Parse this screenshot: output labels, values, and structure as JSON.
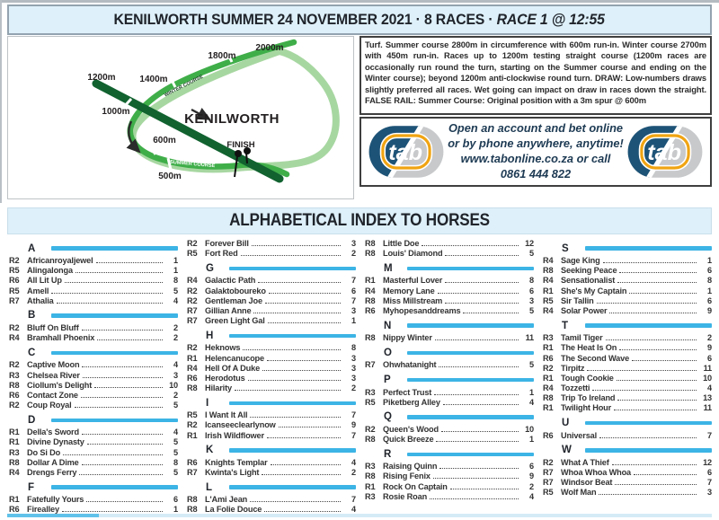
{
  "header": {
    "title_main": "KENILWORTH SUMMER 24 NOVEMBER 2021 · 8 RACES · ",
    "title_race": "RACE 1 @ 12:55"
  },
  "map": {
    "labels": {
      "d2000": "2000m",
      "d1800": "1800m",
      "d1400": "1400m",
      "d1200": "1200m",
      "d1000": "1000m",
      "d600": "600m",
      "d500": "500m",
      "course_name": "KENILWORTH",
      "finish": "FINISH",
      "winter": "WINTER COURSE",
      "summer": "SUMMER COURSE"
    },
    "colors": {
      "light_green": "#a7d7a1",
      "mid_green": "#3fae49",
      "dark_green": "#11622f"
    }
  },
  "info": {
    "text": "Turf. Summer course 2800m in circumference with 600m run-in. Winter course 2700m with 450m run-in. Races up to 1200m testing straight course (1200m races are occasionally run round the turn, starting on the Summer course and ending on the Winter course); beyond 1200m anti-clockwise round turn. DRAW: Low-numbers draws slightly preferred all races. Wet going can impact on draw in races down the straight. FALSE RAIL: Summer Course: Original position with a 3m spur @ 600m"
  },
  "tab": {
    "logo_text": "tab",
    "lines": [
      "Open an account and bet online",
      "or by phone anywhere, anytime!",
      "www.tabonline.co.za or call",
      "0861 444 822"
    ],
    "colors": {
      "blue": "#1d5377",
      "silver": "#c7c9cb",
      "gold": "#f0a412"
    }
  },
  "index": {
    "title": "ALPHABETICAL INDEX TO HORSES",
    "accent_color": "#3cb4e5",
    "columns": [
      {
        "sections": [
          {
            "letter": "A",
            "entries": [
              [
                "R2",
                "Africanroyaljewel",
                "1"
              ],
              [
                "R5",
                "Alingalonga",
                "1"
              ],
              [
                "R6",
                "All Lit Up",
                "8"
              ],
              [
                "R5",
                "Amell",
                "5"
              ],
              [
                "R7",
                "Athalia",
                "4"
              ]
            ]
          },
          {
            "letter": "B",
            "entries": [
              [
                "R2",
                "Bluff On Bluff",
                "2"
              ],
              [
                "R4",
                "Bramhall Phoenix",
                "2"
              ]
            ]
          },
          {
            "letter": "C",
            "entries": [
              [
                "R2",
                "Captive Moon",
                "4"
              ],
              [
                "R3",
                "Chelsea River",
                "3"
              ],
              [
                "R8",
                "Ciollum's Delight",
                "10"
              ],
              [
                "R6",
                "Contact Zone",
                "2"
              ],
              [
                "R2",
                "Coup Royal",
                "5"
              ]
            ]
          },
          {
            "letter": "D",
            "entries": [
              [
                "R1",
                "Della's Sword",
                "4"
              ],
              [
                "R1",
                "Divine Dynasty",
                "5"
              ],
              [
                "R3",
                "Do Si Do",
                "5"
              ],
              [
                "R8",
                "Dollar A Dime",
                "8"
              ],
              [
                "R4",
                "Drengs Ferry",
                "5"
              ]
            ]
          },
          {
            "letter": "F",
            "entries": [
              [
                "R1",
                "Fatefully Yours",
                "6"
              ],
              [
                "R6",
                "Firealley",
                "1"
              ]
            ]
          }
        ]
      },
      {
        "sections": [
          {
            "letter": "",
            "entries": [
              [
                "R2",
                "Forever Bill",
                "3"
              ],
              [
                "R5",
                "Fort Red",
                "2"
              ]
            ]
          },
          {
            "letter": "G",
            "entries": [
              [
                "R4",
                "Galactic Path",
                "7"
              ],
              [
                "R2",
                "Galaktoboureko",
                "6"
              ],
              [
                "R2",
                "Gentleman Joe",
                "7"
              ],
              [
                "R7",
                "Gillian Anne",
                "3"
              ],
              [
                "R7",
                "Green Light Gal",
                "1"
              ]
            ]
          },
          {
            "letter": "H",
            "entries": [
              [
                "R2",
                "Heknows",
                "8"
              ],
              [
                "R1",
                "Helencanucope",
                "3"
              ],
              [
                "R4",
                "Hell Of A Duke",
                "3"
              ],
              [
                "R6",
                "Herodotus",
                "3"
              ],
              [
                "R8",
                "Hilarity",
                "2"
              ]
            ]
          },
          {
            "letter": "I",
            "entries": [
              [
                "R5",
                "I Want It All",
                "7"
              ],
              [
                "R2",
                "Icanseeclearlynow",
                "9"
              ],
              [
                "R1",
                "Irish Wildflower",
                "7"
              ]
            ]
          },
          {
            "letter": "K",
            "entries": [
              [
                "R6",
                "Knights Templar",
                "4"
              ],
              [
                "R7",
                "Kwinta's Light",
                "2"
              ]
            ]
          },
          {
            "letter": "L",
            "entries": [
              [
                "R8",
                "L'Ami Jean",
                "7"
              ],
              [
                "R8",
                "La Folie Douce",
                "4"
              ]
            ]
          }
        ]
      },
      {
        "sections": [
          {
            "letter": "",
            "entries": [
              [
                "R8",
                "Little Doe",
                "12"
              ],
              [
                "R8",
                "Louis' Diamond",
                "5"
              ]
            ]
          },
          {
            "letter": "M",
            "entries": [
              [
                "R1",
                "Masterful Lover",
                "8"
              ],
              [
                "R4",
                "Memory Lane",
                "6"
              ],
              [
                "R8",
                "Miss Millstream",
                "3"
              ],
              [
                "R6",
                "Myhopesanddreams",
                "5"
              ]
            ]
          },
          {
            "letter": "N",
            "entries": [
              [
                "R8",
                "Nippy Winter",
                "11"
              ]
            ]
          },
          {
            "letter": "O",
            "entries": [
              [
                "R7",
                "Ohwhatanight",
                "5"
              ]
            ]
          },
          {
            "letter": "P",
            "entries": [
              [
                "R3",
                "Perfect Trust",
                "1"
              ],
              [
                "R5",
                "Piketberg Alley",
                "4"
              ]
            ]
          },
          {
            "letter": "Q",
            "entries": [
              [
                "R2",
                "Queen's Wood",
                "10"
              ],
              [
                "R8",
                "Quick Breeze",
                "1"
              ]
            ]
          },
          {
            "letter": "R",
            "entries": [
              [
                "R3",
                "Raising Quinn",
                "6"
              ],
              [
                "R8",
                "Rising Fenix",
                "9"
              ],
              [
                "R1",
                "Rock On Captain",
                "2"
              ],
              [
                "R3",
                "Rosie Roan",
                "4"
              ]
            ]
          }
        ]
      },
      {
        "sections": [
          {
            "letter": "S",
            "entries": [
              [
                "R4",
                "Sage King",
                "1"
              ],
              [
                "R8",
                "Seeking Peace",
                "6"
              ],
              [
                "R4",
                "Sensationalist",
                "8"
              ],
              [
                "R1",
                "She's My Captain",
                "1"
              ],
              [
                "R5",
                "Sir Tallin",
                "6"
              ],
              [
                "R4",
                "Solar Power",
                "9"
              ]
            ]
          },
          {
            "letter": "T",
            "entries": [
              [
                "R3",
                "Tamil Tiger",
                "2"
              ],
              [
                "R1",
                "The Heat Is On",
                "9"
              ],
              [
                "R6",
                "The Second Wave",
                "6"
              ],
              [
                "R2",
                "Tirpitz",
                "11"
              ],
              [
                "R1",
                "Tough Cookie",
                "10"
              ],
              [
                "R4",
                "Tozzetti",
                "4"
              ],
              [
                "R8",
                "Trip To Ireland",
                "13"
              ],
              [
                "R1",
                "Twilight Hour",
                "11"
              ]
            ]
          },
          {
            "letter": "U",
            "entries": [
              [
                "R6",
                "Universal",
                "7"
              ]
            ]
          },
          {
            "letter": "W",
            "entries": [
              [
                "R2",
                "What A Thief",
                "12"
              ],
              [
                "R7",
                "Whoa Whoa Whoa",
                "6"
              ],
              [
                "R7",
                "Windsor Beat",
                "7"
              ],
              [
                "R5",
                "Wolf Man",
                "3"
              ]
            ]
          }
        ]
      }
    ]
  }
}
